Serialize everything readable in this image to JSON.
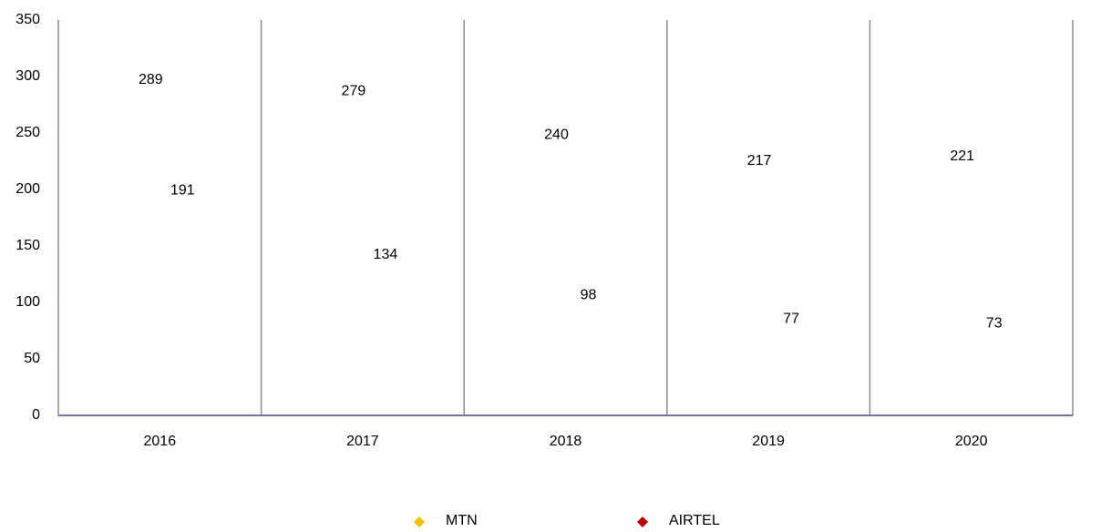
{
  "chart_data": {
    "type": "scatter",
    "categories": [
      "2016",
      "2017",
      "2018",
      "2019",
      "2020"
    ],
    "series": [
      {
        "name": "MTN",
        "color": "#f2c200",
        "values": [
          289,
          279,
          240,
          217,
          221
        ]
      },
      {
        "name": "AIRTEL",
        "color": "#c00000",
        "values": [
          191,
          134,
          98,
          77,
          73
        ]
      }
    ],
    "ylim": [
      0,
      350
    ],
    "yticks": [
      0,
      50,
      100,
      150,
      200,
      250,
      300,
      350
    ],
    "legend": "bottom"
  }
}
